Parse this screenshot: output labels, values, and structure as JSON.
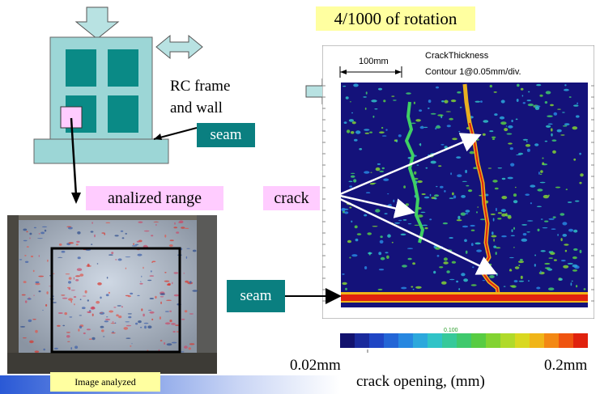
{
  "rotation_label": "4/1000 of rotation",
  "rc_label_line1": "RC frame",
  "rc_label_line2": "and wall",
  "seam_label": "seam",
  "analized_label": "analized  range",
  "crack_label": "crack",
  "photo_caption": "Image analyzed",
  "plot": {
    "scale_text": "100mm",
    "title_line1": "CrackThickness",
    "title_line2": "Contour 1@0.05mm/div."
  },
  "colorbar": {
    "min_label": "0.02mm",
    "max_label": "0.2mm",
    "mid_label": "0.100",
    "axis_label": "crack opening,  (mm)",
    "colors": [
      "#12126e",
      "#1a2a9c",
      "#1f45c4",
      "#2365d6",
      "#2787e0",
      "#2ca8dc",
      "#30c3c7",
      "#36c99a",
      "#3fc96d",
      "#58cc43",
      "#82d332",
      "#b0da2a",
      "#d9d820",
      "#f0b518",
      "#f38814",
      "#ef5410",
      "#e0220e"
    ]
  },
  "colors": {
    "frame_fill": "#9cd6d6",
    "window_fill": "#0a8a86",
    "arrow_fill": "#b8e2e2",
    "teal_label": "#0a7f80",
    "pink_label": "#ffccff",
    "yellow_label": "#ffffa0"
  }
}
